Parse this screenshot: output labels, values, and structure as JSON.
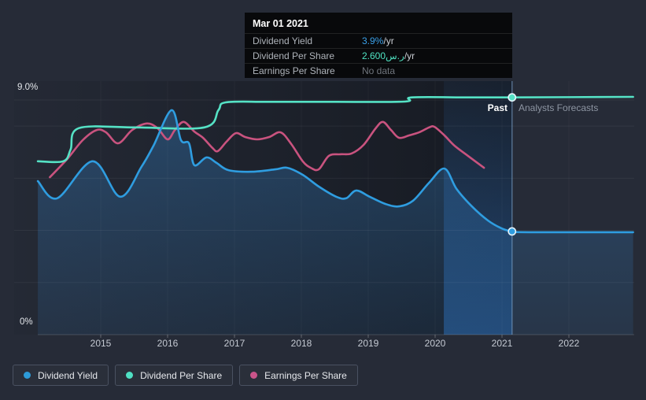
{
  "tooltip": {
    "date": "Mar 01 2021",
    "rows": [
      {
        "label": "Dividend Yield",
        "value": "3.9%",
        "suffix": " /yr",
        "value_color": "#3aa0e8"
      },
      {
        "label": "Dividend Per Share",
        "value": "2.600ر.س",
        "suffix": " /yr",
        "value_color": "#4fe3c3"
      },
      {
        "label": "Earnings Per Share",
        "value": "No data",
        "suffix": "",
        "value_color": "#6f747c"
      }
    ]
  },
  "annotations": {
    "past": "Past",
    "forecast": "Analysts Forecasts"
  },
  "axis": {
    "y_top_label": "9.0%",
    "y_bottom_label": "0%",
    "years": [
      "2015",
      "2016",
      "2017",
      "2018",
      "2019",
      "2020",
      "2021",
      "2022"
    ]
  },
  "legend": [
    {
      "label": "Dividend Yield",
      "color": "#2d9bd8"
    },
    {
      "label": "Dividend Per Share",
      "color": "#4fe0c3"
    },
    {
      "label": "Earnings Per Share",
      "color": "#c9548a"
    }
  ],
  "chart_data": {
    "type": "line",
    "title": "Dividend history and forecast",
    "x_axis": {
      "tick_years": [
        2015,
        2016,
        2017,
        2018,
        2019,
        2020,
        2021,
        2022
      ],
      "range": [
        2014.06,
        2022.96
      ]
    },
    "y_axis": {
      "unit": "%",
      "range": [
        0,
        9.7
      ],
      "gridline_values_pct": [
        9,
        8,
        6,
        4,
        2
      ],
      "baseline_pct": 0
    },
    "divider_year": 2021.15,
    "highlight_band_years": [
      2020.13,
      2021.15
    ],
    "legend_position": "bottom",
    "series": [
      {
        "name": "Dividend Yield",
        "color": "#2f9de0",
        "area_fill": true,
        "marker_at_divider_pct": 3.96,
        "points": [
          [
            2014.06,
            5.89
          ],
          [
            2014.35,
            5.23
          ],
          [
            2014.88,
            6.65
          ],
          [
            2015.29,
            5.29
          ],
          [
            2015.61,
            6.44
          ],
          [
            2015.79,
            7.25
          ],
          [
            2016.06,
            8.61
          ],
          [
            2016.2,
            7.46
          ],
          [
            2016.32,
            7.34
          ],
          [
            2016.4,
            6.5
          ],
          [
            2016.58,
            6.8
          ],
          [
            2016.73,
            6.59
          ],
          [
            2016.91,
            6.31
          ],
          [
            2017.26,
            6.25
          ],
          [
            2017.61,
            6.34
          ],
          [
            2017.79,
            6.4
          ],
          [
            2018.02,
            6.13
          ],
          [
            2018.26,
            5.68
          ],
          [
            2018.52,
            5.29
          ],
          [
            2018.67,
            5.23
          ],
          [
            2018.82,
            5.53
          ],
          [
            2019.02,
            5.29
          ],
          [
            2019.26,
            5.01
          ],
          [
            2019.46,
            4.92
          ],
          [
            2019.67,
            5.14
          ],
          [
            2019.91,
            5.83
          ],
          [
            2020.14,
            6.37
          ],
          [
            2020.32,
            5.59
          ],
          [
            2020.55,
            4.92
          ],
          [
            2020.79,
            4.38
          ],
          [
            2020.99,
            4.08
          ],
          [
            2021.15,
            3.96
          ],
          [
            2021.4,
            3.93
          ],
          [
            2022.96,
            3.93
          ]
        ]
      },
      {
        "name": "Dividend Per Share",
        "color": "#55e2c5",
        "area_fill": false,
        "marker_at_divider_pct": 9.1,
        "points": [
          [
            2014.06,
            6.65
          ],
          [
            2014.44,
            6.65
          ],
          [
            2014.55,
            7.1
          ],
          [
            2014.67,
            7.92
          ],
          [
            2015.5,
            7.95
          ],
          [
            2016.55,
            7.95
          ],
          [
            2016.76,
            8.61
          ],
          [
            2016.87,
            8.91
          ],
          [
            2017.5,
            8.93
          ],
          [
            2018.5,
            8.93
          ],
          [
            2019.55,
            8.94
          ],
          [
            2019.65,
            9.1
          ],
          [
            2020.5,
            9.1
          ],
          [
            2021.15,
            9.1
          ],
          [
            2022.96,
            9.12
          ]
        ]
      },
      {
        "name": "Earnings Per Share",
        "color": "#c9537f",
        "area_fill": false,
        "points": [
          [
            2014.24,
            6.04
          ],
          [
            2014.49,
            6.71
          ],
          [
            2014.73,
            7.46
          ],
          [
            2014.94,
            7.85
          ],
          [
            2015.08,
            7.76
          ],
          [
            2015.26,
            7.34
          ],
          [
            2015.47,
            7.85
          ],
          [
            2015.69,
            8.1
          ],
          [
            2015.85,
            7.92
          ],
          [
            2016.0,
            7.49
          ],
          [
            2016.11,
            7.85
          ],
          [
            2016.24,
            8.16
          ],
          [
            2016.4,
            7.79
          ],
          [
            2016.53,
            7.55
          ],
          [
            2016.67,
            7.16
          ],
          [
            2016.75,
            7.04
          ],
          [
            2016.88,
            7.4
          ],
          [
            2017.02,
            7.73
          ],
          [
            2017.16,
            7.58
          ],
          [
            2017.34,
            7.49
          ],
          [
            2017.52,
            7.58
          ],
          [
            2017.69,
            7.76
          ],
          [
            2017.85,
            7.31
          ],
          [
            2018.02,
            6.65
          ],
          [
            2018.14,
            6.4
          ],
          [
            2018.26,
            6.34
          ],
          [
            2018.41,
            6.86
          ],
          [
            2018.58,
            6.92
          ],
          [
            2018.75,
            6.95
          ],
          [
            2018.93,
            7.28
          ],
          [
            2019.11,
            7.91
          ],
          [
            2019.22,
            8.16
          ],
          [
            2019.34,
            7.85
          ],
          [
            2019.46,
            7.55
          ],
          [
            2019.61,
            7.64
          ],
          [
            2019.76,
            7.76
          ],
          [
            2019.91,
            7.95
          ],
          [
            2019.99,
            7.97
          ],
          [
            2020.14,
            7.64
          ],
          [
            2020.29,
            7.25
          ],
          [
            2020.49,
            6.86
          ],
          [
            2020.73,
            6.4
          ]
        ]
      }
    ]
  }
}
